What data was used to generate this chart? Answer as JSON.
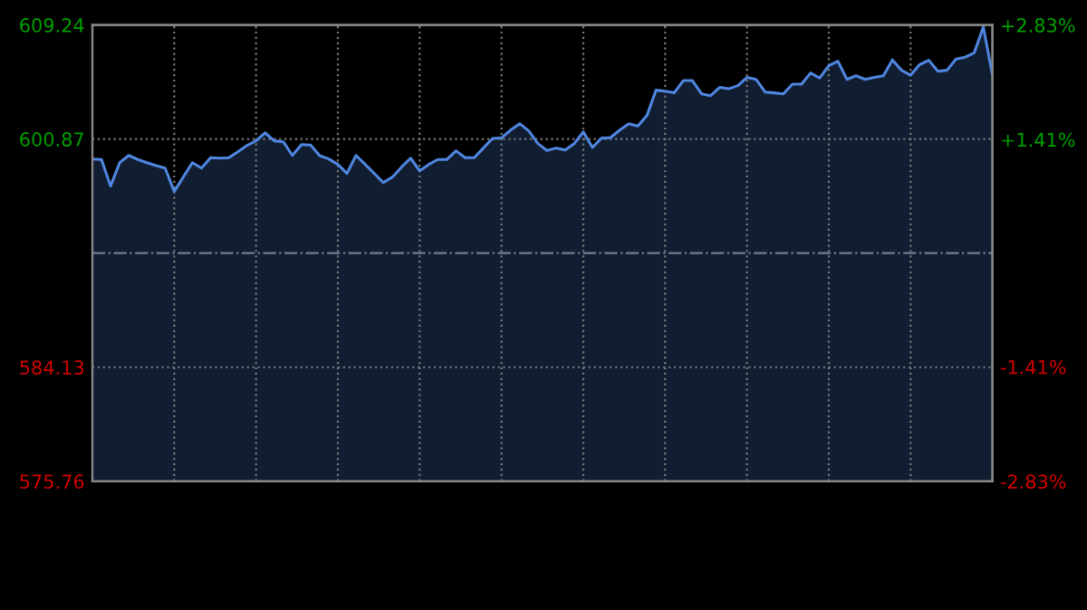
{
  "chart_data": {
    "type": "area",
    "categories": [
      null,
      null,
      null,
      null,
      null,
      null,
      null,
      null,
      null,
      null,
      null,
      null,
      null,
      null,
      null,
      null,
      null,
      null,
      null,
      null,
      null,
      null,
      null,
      null,
      null,
      null,
      null,
      null,
      null,
      null,
      null,
      null,
      null,
      null,
      null,
      null,
      null,
      null,
      null,
      null,
      null,
      null,
      null,
      null,
      null,
      null,
      null,
      null,
      null,
      null,
      null,
      null,
      null,
      null,
      null,
      null,
      null,
      null,
      null,
      null,
      null,
      null,
      null,
      null,
      null,
      null,
      null,
      null,
      null,
      null,
      null,
      null,
      null,
      null,
      null,
      null,
      null,
      null,
      null,
      null,
      null,
      null,
      null,
      null,
      null,
      null,
      null,
      null,
      null,
      null,
      null,
      null,
      null,
      null,
      null,
      null,
      null,
      null,
      null,
      null
    ],
    "series": [
      {
        "color": "#4f86e0",
        "values": [
          599.41,
          599.37,
          597.42,
          599.14,
          599.67,
          599.37,
          599.14,
          598.92,
          598.74,
          597.02,
          598.08,
          599.14,
          598.74,
          599.5,
          599.47,
          599.5,
          599.94,
          600.4,
          600.74,
          601.33,
          600.74,
          600.67,
          599.67,
          600.47,
          600.43,
          599.65,
          599.41,
          599.01,
          598.35,
          599.67,
          599.01,
          598.35,
          597.68,
          598.08,
          598.81,
          599.47,
          598.54,
          599.01,
          599.37,
          599.38,
          600.01,
          599.5,
          599.5,
          600.21,
          600.91,
          600.96,
          601.53,
          602.0,
          601.47,
          600.54,
          600.03,
          600.21,
          600.07,
          600.54,
          601.4,
          600.25,
          600.94,
          600.98,
          601.53,
          602.0,
          601.83,
          602.6,
          604.46,
          604.39,
          604.26,
          605.16,
          605.16,
          604.19,
          604.06,
          604.66,
          604.56,
          604.79,
          605.39,
          605.25,
          604.32,
          604.26,
          604.19,
          604.9,
          604.9,
          605.72,
          605.35,
          606.25,
          606.58,
          605.25,
          605.52,
          605.25,
          605.39,
          605.52,
          606.68,
          605.92,
          605.56,
          606.34,
          606.65,
          605.85,
          605.92,
          606.74,
          606.88,
          607.2,
          609.1,
          605.56
        ]
      }
    ],
    "ylim": [
      575.76,
      609.24
    ],
    "yticks": [
      575.76,
      584.13,
      600.87,
      609.24
    ],
    "y2lim": [
      -2.83,
      2.83
    ],
    "y2ticks": [
      {
        "value": -2.83,
        "label": "-2.83%"
      },
      {
        "value": -1.41,
        "label": "-1.41%"
      },
      {
        "value": 1.41,
        "label": "+1.41%"
      },
      {
        "value": 2.83,
        "label": "+2.83%"
      }
    ],
    "ref_lines": [
      {
        "axis": "y",
        "value": 592.5,
        "label": null,
        "line_style": "dashdot",
        "color": "#6f7f8f"
      }
    ],
    "grid": true,
    "legend": false,
    "line_style": "solid",
    "marker": "none"
  }
}
